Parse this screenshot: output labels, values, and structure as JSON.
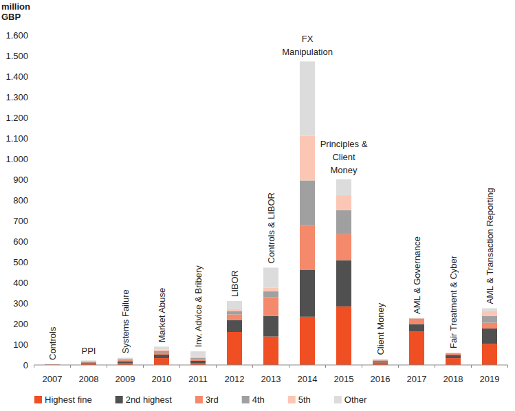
{
  "chart_data": {
    "type": "bar",
    "stacked": true,
    "grid": false,
    "legend": "bottom",
    "y_label": [
      "million",
      "GBP"
    ],
    "categories": [
      "2007",
      "2008",
      "2009",
      "2010",
      "2011",
      "2012",
      "2013",
      "2014",
      "2015",
      "2016",
      "2017",
      "2018",
      "2019"
    ],
    "ylim": [
      0,
      1600
    ],
    "yticks": [
      0,
      100,
      200,
      300,
      400,
      500,
      600,
      700,
      800,
      900,
      {
        "value": 1000,
        "label": "1.000"
      },
      {
        "value": 1100,
        "label": "1.100"
      },
      {
        "value": 1200,
        "label": "1.200"
      },
      {
        "value": 1300,
        "label": "1.300"
      },
      {
        "value": 1400,
        "label": "1.400"
      },
      {
        "value": 1500,
        "label": "1.500"
      },
      {
        "value": 1600,
        "label": "1.600"
      }
    ],
    "series": [
      {
        "name": "Highest fine",
        "color": "#f04e23",
        "values": [
          2,
          8,
          10,
          33,
          10,
          160,
          138,
          234,
          284,
          12,
          163,
          33,
          102
        ]
      },
      {
        "name": "2nd highest",
        "color": "#505050",
        "values": [
          0.5,
          4,
          8,
          17,
          10,
          58,
          100,
          226,
          224,
          6,
          35,
          16,
          75
        ]
      },
      {
        "name": "3rd",
        "color": "#f4896b",
        "values": [
          0.3,
          3,
          5,
          10,
          8,
          27,
          90,
          218,
          126,
          4,
          27,
          5,
          28
        ]
      },
      {
        "name": "4th",
        "color": "#a0a0a0",
        "values": [
          0.2,
          2,
          4,
          8,
          7,
          15,
          30,
          217,
          117,
          3,
          1,
          3,
          33
        ]
      },
      {
        "name": "5th",
        "color": "#fbc7b4",
        "values": [
          0.1,
          2,
          3,
          7,
          6,
          10,
          17,
          216,
          72,
          2,
          1,
          2,
          22
        ]
      },
      {
        "name": "Other",
        "color": "#dcdcdc",
        "values": [
          0.2,
          3,
          5,
          14,
          25,
          40,
          97,
          361,
          77,
          1,
          0,
          1,
          15
        ]
      }
    ],
    "annotations": [
      {
        "x": "2007",
        "text": [
          "Controls"
        ]
      },
      {
        "x": "2008",
        "text": [
          "PPI"
        ]
      },
      {
        "x": "2009",
        "text": [
          "Systems Failure"
        ]
      },
      {
        "x": "2010",
        "text": [
          "Market Abuse"
        ]
      },
      {
        "x": "2011",
        "text": [
          "Inv. Advice & Bribery"
        ]
      },
      {
        "x": "2012",
        "text": [
          "LIBOR"
        ]
      },
      {
        "x": "2013",
        "text": [
          "Controls & LIBOR"
        ]
      },
      {
        "x": "2014",
        "text": [
          "FX",
          "Manipulation"
        ]
      },
      {
        "x": "2015",
        "text": [
          "Principles &",
          "Client",
          "Money"
        ]
      },
      {
        "x": "2016",
        "text": [
          "Client Money"
        ]
      },
      {
        "x": "2017",
        "text": [
          "AML & Governance"
        ]
      },
      {
        "x": "2018",
        "text": [
          "Fair Treatment & Cyber"
        ]
      },
      {
        "x": "2019",
        "text": [
          "AML & Transaction Reporting"
        ]
      }
    ]
  }
}
